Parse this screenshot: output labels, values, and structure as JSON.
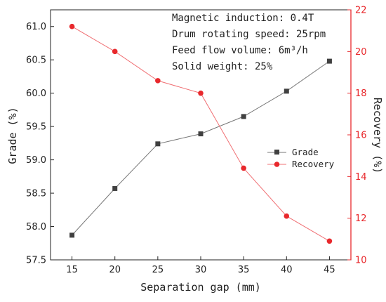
{
  "chart_data": {
    "type": "line",
    "xlabel": "Separation gap (mm)",
    "x": [
      15,
      20,
      25,
      30,
      35,
      40,
      45
    ],
    "xlim": [
      12.5,
      47.5
    ],
    "xticks": [
      "15",
      "20",
      "25",
      "30",
      "35",
      "40",
      "45"
    ],
    "y_left": {
      "label": "Grade (%)",
      "lim": [
        57.5,
        61.25
      ],
      "ticks": [
        "57.5",
        "58.0",
        "58.5",
        "59.0",
        "59.5",
        "60.0",
        "60.5",
        "61.0"
      ],
      "color": "#000000"
    },
    "y_right": {
      "label": "Recovery (%)",
      "lim": [
        10,
        22
      ],
      "ticks": [
        "10",
        "12",
        "14",
        "16",
        "18",
        "20",
        "22"
      ],
      "color": "#e8282c"
    },
    "series": [
      {
        "name": "Grade",
        "axis": "left",
        "marker": "square",
        "color": "#404040",
        "line_color": "#777777",
        "values": [
          57.87,
          58.57,
          59.24,
          59.39,
          59.65,
          60.03,
          60.48
        ]
      },
      {
        "name": "Recovery",
        "axis": "right",
        "marker": "circle",
        "color": "#e8282c",
        "line_color": "#f07074",
        "values": [
          21.2,
          20.0,
          18.6,
          18.0,
          14.4,
          12.1,
          10.9
        ]
      }
    ],
    "annotations": [
      "Magnetic induction: 0.4T",
      "Drum rotating speed: 25rpm",
      "Feed flow volume: 6m³/h",
      "Solid weight: 25%"
    ],
    "legend": "center-right",
    "grid": false
  }
}
